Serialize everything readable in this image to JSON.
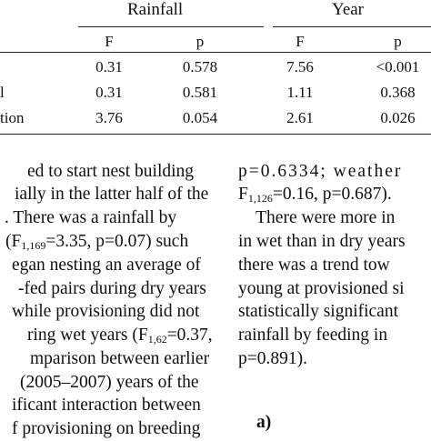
{
  "table": {
    "groups": [
      "Rainfall",
      "Year"
    ],
    "subheaders": [
      "F",
      "p",
      "F",
      "p"
    ],
    "rows": [
      {
        "label": "",
        "values": [
          "0.31",
          "0.578",
          "7.56",
          "<0.001"
        ]
      },
      {
        "label": "l",
        "values": [
          "0.31",
          "0.581",
          "1.11",
          "0.368"
        ]
      },
      {
        "label": "tion",
        "values": [
          "3.76",
          "0.054",
          "2.61",
          "0.026"
        ]
      }
    ]
  },
  "left_column": [
    {
      "pre": "ed to start nest building"
    },
    {
      "pre": "ially in the latter half of the"
    },
    {
      "pre": ". There was a rainfall by"
    },
    {
      "pre": "(F",
      "sub": "1,169",
      "post": "=3.35, p=0.07) such"
    },
    {
      "pre": "egan nesting an average of"
    },
    {
      "pre": "-fed pairs during dry years"
    },
    {
      "pre": "while provisioning did not"
    },
    {
      "pre": "ring wet years (F",
      "sub": "1,62",
      "post": "=0.37,"
    },
    {
      "pre": "mparison between earlier"
    },
    {
      "pre": "(2005–2007) years of the"
    },
    {
      "pre": "ificant interaction between"
    },
    {
      "pre": "f provisioning on breeding"
    }
  ],
  "right_column": [
    {
      "pre": "p=0.6334; weather"
    },
    {
      "pre": "F",
      "sub": "1,126",
      "post": "=0.16, p=0.687)."
    },
    {
      "pre": "    There were more in"
    },
    {
      "pre": "in wet than in dry years"
    },
    {
      "pre": "there was a trend tow"
    },
    {
      "pre": "young at provisioned si"
    },
    {
      "pre": "statistically significant"
    },
    {
      "pre": "rainfall by feeding in"
    },
    {
      "pre": "p=0.891)."
    }
  ],
  "figure_label": "a)"
}
